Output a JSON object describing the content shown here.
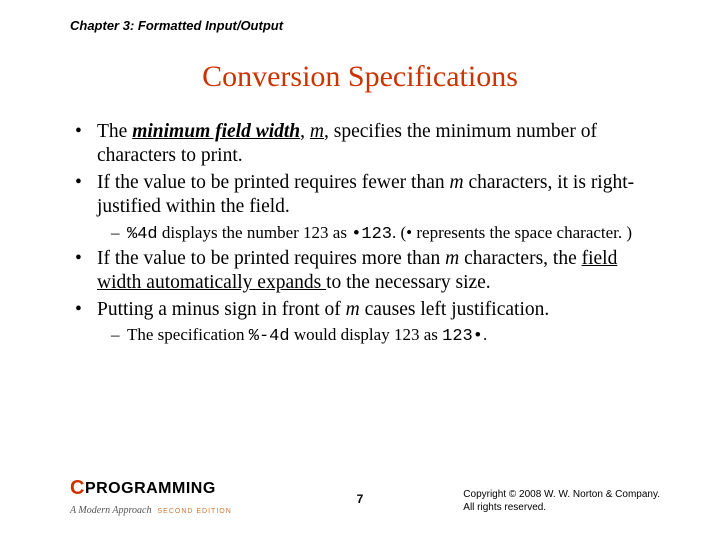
{
  "header": {
    "chapter": "Chapter 3: Formatted Input/Output"
  },
  "title": "Conversion Specifications",
  "bullets": {
    "b1_pre": "The ",
    "b1_em": "minimum field width",
    "b1_mid": ", ",
    "b1_m": "m",
    "b1_post": ", specifies the minimum number of characters to print.",
    "b2_pre": "If the value to be printed requires fewer than ",
    "b2_m": "m",
    "b2_post": " characters, it is right-justified within the field.",
    "s1_code": "%4d",
    "s1_mid": " displays the number 123 as ",
    "s1_val": "•123",
    "s1_post": ". (• represents the space character. )",
    "b3_pre": "If the value to be printed requires more than ",
    "b3_m": "m",
    "b3_mid": " characters, the ",
    "b3_u": "field width automatically expands ",
    "b3_post": "to the necessary size.",
    "b4_pre": "Putting a minus sign in front of ",
    "b4_m": "m",
    "b4_post": " causes left justification.",
    "s2_pre": "The specification ",
    "s2_code": "%-4d",
    "s2_mid": " would display 123 as ",
    "s2_val": "123•",
    "s2_post": "."
  },
  "footer": {
    "logo_c": "C",
    "logo_text": "PROGRAMMING",
    "logo_sub": "A Modern Approach",
    "logo_ed": "SECOND EDITION",
    "page": "7",
    "copy1": "Copyright © 2008 W. W. Norton & Company.",
    "copy2": "All rights reserved."
  }
}
